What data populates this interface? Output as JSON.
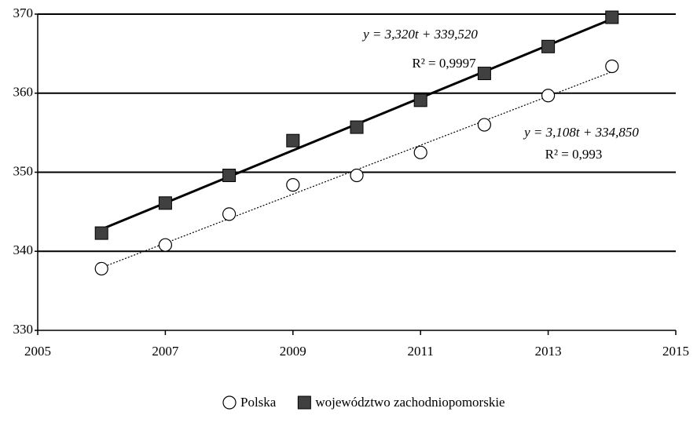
{
  "chart_data": {
    "type": "scatter",
    "x": [
      2006,
      2007,
      2008,
      2009,
      2010,
      2011,
      2012,
      2013,
      2014
    ],
    "series": [
      {
        "name": "Polska",
        "color": "#000000",
        "marker": "circle",
        "trendline": "dotted",
        "values": [
          337.8,
          340.8,
          344.7,
          348.4,
          349.6,
          352.5,
          356.0,
          359.7,
          363.4
        ]
      },
      {
        "name": "województwo zachodniopomorskie",
        "color": "#404040",
        "marker": "square",
        "trendline": "solid",
        "values": [
          342.3,
          346.1,
          349.6,
          354.0,
          355.7,
          359.1,
          362.5,
          365.9,
          369.6
        ]
      }
    ],
    "annotations": [
      "y = 3,320t + 339,520",
      "R² = 0,9997",
      "y = 3,108t + 334,850",
      "R² = 0,993"
    ],
    "xlim": [
      2005,
      2015
    ],
    "xticks": [
      2005,
      2007,
      2009,
      2011,
      2013,
      2015
    ],
    "ylim": [
      330,
      370
    ],
    "yticks": [
      330,
      340,
      350,
      360,
      370
    ],
    "grid": true,
    "legend": "bottom"
  }
}
